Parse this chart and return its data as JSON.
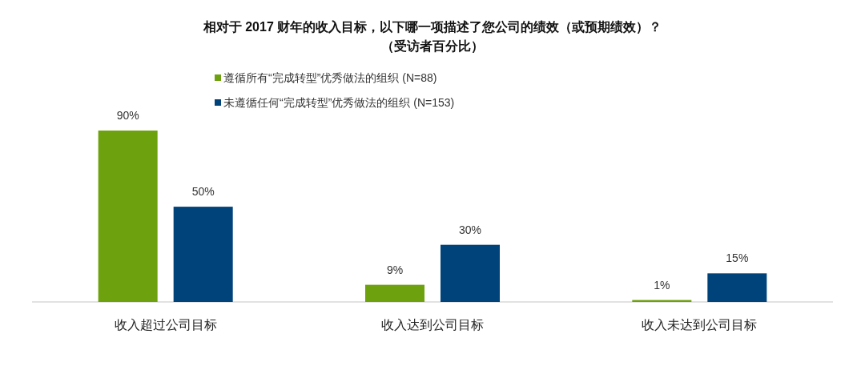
{
  "chart_data": {
    "type": "bar",
    "title": "相对于 2017 财年的收入目标，以下哪一项描述了您公司的绩效（或预期绩效）？",
    "subtitle": "（受访者百分比）",
    "categories": [
      "收入超过公司目标",
      "收入达到公司目标",
      "收入未达到公司目标"
    ],
    "series": [
      {
        "name": "遵循所有“完成转型”优秀做法的组织 (N=88)",
        "color": "#6ea10e",
        "values": [
          90,
          9,
          1
        ],
        "value_labels": [
          "90%",
          "9%",
          "1%"
        ]
      },
      {
        "name": "未遵循任何“完成转型”优秀做法的组织 (N=153)",
        "color": "#00427a",
        "values": [
          50,
          30,
          15
        ],
        "value_labels": [
          "50%",
          "30%",
          "15%"
        ]
      }
    ],
    "legend": "top"
  }
}
